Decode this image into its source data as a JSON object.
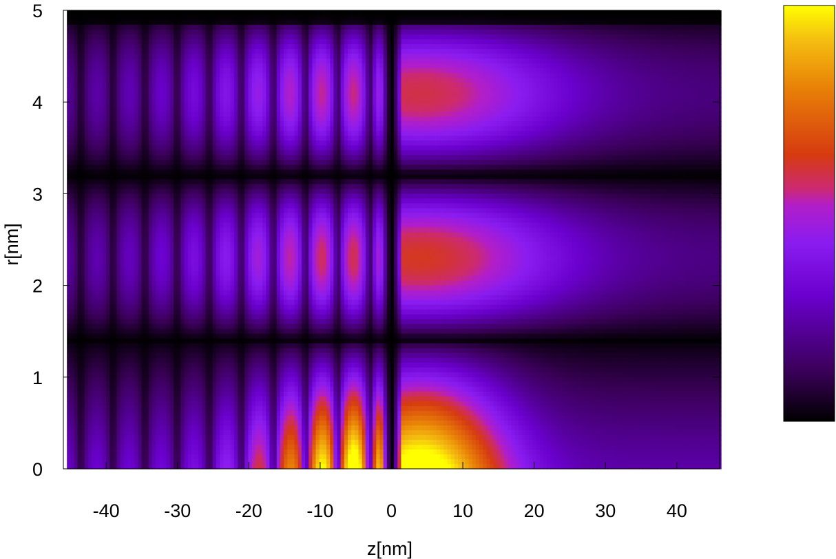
{
  "chart_data": {
    "type": "heatmap",
    "title": "",
    "xlabel": "z[nm]",
    "ylabel": "r[nm]",
    "xlim": [
      -46,
      46
    ],
    "ylim": [
      0,
      5
    ],
    "x_ticks": [
      -40,
      -30,
      -20,
      -10,
      0,
      10,
      20,
      30,
      40
    ],
    "x_tick_labels": [
      "-40",
      "-30",
      "-20",
      "-10",
      "0",
      "10",
      "20",
      "30",
      "40"
    ],
    "y_ticks": [
      0,
      1,
      2,
      3,
      4,
      5
    ],
    "y_tick_labels": [
      "0",
      "1",
      "2",
      "3",
      "4",
      "5"
    ],
    "grid": false,
    "colorbar": {
      "position": "right",
      "tick_labels": [],
      "colormap": [
        "#000000",
        "#3a0058",
        "#6a00cc",
        "#8a1cf0",
        "#b21ec8",
        "#cc2a70",
        "#d63a10",
        "#e88008",
        "#f5c010",
        "#ffff00"
      ]
    },
    "features": {
      "node_line_z": 0,
      "radial_node_lines_r": [
        1.4,
        3.2
      ],
      "max_intensity_regions": [
        {
          "z": -3.5,
          "r": 0
        },
        {
          "z": 3,
          "r": 0
        }
      ],
      "left_oscillation_period_z": 4.5
    }
  }
}
